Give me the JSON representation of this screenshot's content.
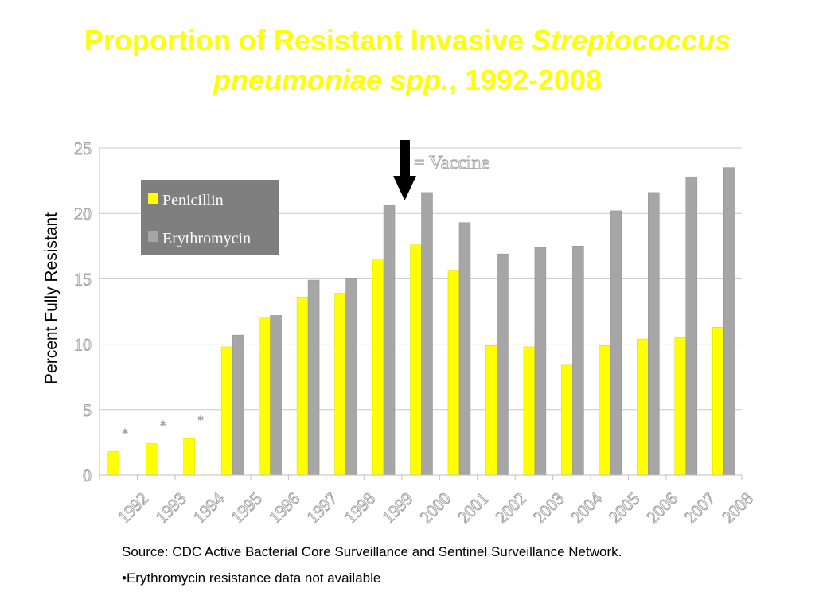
{
  "title": {
    "part1": "Proportion of Resistant Invasive ",
    "part2_italic": "Streptococcus pneumoniae spp.",
    "part3": ", 1992-2008"
  },
  "y_axis_label": "Percent  Fully Resistant",
  "vaccine_label": "= Vaccine",
  "not_available_marker": "*",
  "source_note": "Source: CDC Active Bacterial Core Surveillance and Sentinel Surveillance Network.",
  "footnote": "•Erythromycin resistance data not available",
  "colors": {
    "title": "#ffff00",
    "penicillin": "#ffff00",
    "erythromycin": "#a6a6a6",
    "legend_bg": "#7f7f7f",
    "grid": "#c8c8c8"
  },
  "chart_data": {
    "type": "bar",
    "categories": [
      "1992",
      "1993",
      "1994",
      "1995",
      "1996",
      "1997",
      "1998",
      "1999",
      "2000",
      "2001",
      "2002",
      "2003",
      "2004",
      "2005",
      "2006",
      "2007",
      "2008"
    ],
    "series": [
      {
        "name": "Penicillin",
        "color": "#ffff00",
        "values": [
          1.8,
          2.4,
          2.8,
          9.8,
          12.0,
          13.6,
          13.9,
          16.5,
          17.6,
          15.6,
          9.9,
          9.8,
          8.4,
          9.9,
          10.4,
          10.5,
          11.3
        ]
      },
      {
        "name": "Erythromycin",
        "color": "#a6a6a6",
        "values": [
          null,
          null,
          null,
          10.7,
          12.2,
          14.9,
          15.0,
          20.6,
          21.6,
          19.3,
          16.9,
          17.4,
          17.5,
          20.2,
          21.6,
          22.8,
          23.5
        ]
      }
    ],
    "y_ticks": [
      0,
      5,
      10,
      15,
      20,
      25
    ],
    "ylim": [
      0,
      25
    ],
    "ylabel": "Percent  Fully Resistant",
    "legend_position": "upper-left",
    "grid": true,
    "annotation": {
      "text": "= Vaccine",
      "marker": "down-arrow",
      "category": "1999"
    }
  }
}
